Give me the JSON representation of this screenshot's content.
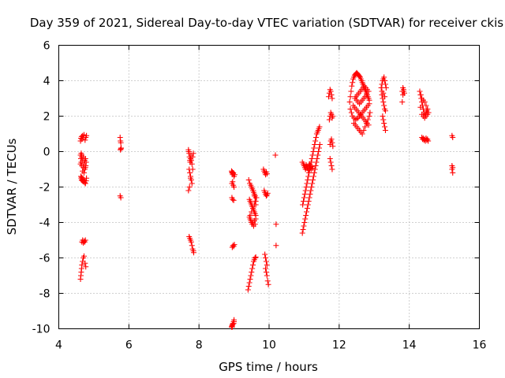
{
  "chart_data": {
    "type": "scatter",
    "title": "Day 359 of 2021, Sidereal Day-to-day VTEC variation (SDTVAR) for receiver ckis",
    "xlabel": "GPS time / hours",
    "ylabel": "SDTVAR / TECUs",
    "xlim": [
      4,
      16
    ],
    "ylim": [
      -10,
      6
    ],
    "xticks": [
      4,
      6,
      8,
      10,
      12,
      14,
      16
    ],
    "yticks": [
      -10,
      -8,
      -6,
      -4,
      -2,
      0,
      2,
      4,
      6
    ],
    "xtick_labels": [
      "4",
      "6",
      "8",
      "10",
      "12",
      "14",
      "16"
    ],
    "ytick_labels": [
      "-10",
      "-8",
      "-6",
      "-4",
      "-2",
      "0",
      "2",
      "4",
      "6"
    ],
    "grid": true,
    "marker": "+",
    "color": "#ff0000",
    "series": [
      {
        "name": "SDTVAR",
        "x": [
          4.62,
          4.63,
          4.65,
          4.66,
          4.68,
          4.7,
          4.72,
          4.75,
          4.77,
          4.79,
          4.62,
          4.63,
          4.64,
          4.65,
          4.66,
          4.68,
          4.7,
          4.72,
          4.74,
          4.76,
          4.78,
          4.64,
          4.66,
          4.7,
          4.74,
          4.77,
          4.62,
          4.68,
          4.72,
          4.76,
          4.63,
          4.64,
          4.65,
          4.66,
          4.67,
          4.68,
          4.7,
          4.72,
          4.74,
          4.76,
          4.78,
          4.79,
          4.66,
          4.68,
          4.7,
          4.72,
          4.74,
          4.76,
          4.62,
          4.63,
          4.64,
          4.65,
          4.66,
          4.68,
          4.7,
          4.72,
          4.75,
          4.77,
          5.75,
          5.76,
          5.77,
          5.78,
          5.76,
          5.77,
          5.75,
          5.77,
          7.7,
          7.71,
          7.72,
          7.73,
          7.74,
          7.75,
          7.76,
          7.77,
          7.78,
          7.8,
          7.82,
          7.84,
          7.72,
          7.74,
          7.76,
          7.78,
          7.8,
          7.82,
          7.7,
          7.73,
          7.76,
          7.72,
          7.74,
          7.76,
          7.78,
          7.8,
          7.82,
          7.84,
          7.85,
          8.93,
          8.94,
          8.95,
          8.96,
          8.97,
          8.98,
          9.0,
          9.02,
          8.94,
          8.96,
          8.98,
          9.0,
          8.94,
          8.96,
          8.99,
          8.95,
          8.97,
          8.99,
          9.01,
          8.93,
          8.95,
          8.97,
          8.99,
          9.0,
          8.94,
          8.96,
          9.0,
          8.95,
          8.99,
          9.42,
          9.45,
          9.48,
          9.5,
          9.52,
          9.54,
          9.56,
          9.58,
          9.6,
          9.62,
          9.44,
          9.46,
          9.48,
          9.5,
          9.52,
          9.54,
          9.56,
          9.58,
          9.6,
          9.62,
          9.44,
          9.46,
          9.48,
          9.5,
          9.52,
          9.54,
          9.56,
          9.58,
          9.6,
          9.62,
          9.46,
          9.5,
          9.54,
          9.58,
          9.62,
          9.64,
          9.4,
          9.42,
          9.44,
          9.46,
          9.48,
          9.5,
          9.52,
          9.54,
          9.56,
          9.58,
          9.6,
          9.62,
          9.55,
          9.58,
          9.6,
          9.62,
          9.84,
          9.86,
          9.88,
          9.9,
          9.92,
          9.94,
          9.86,
          9.88,
          9.9,
          9.92,
          9.94,
          9.96,
          9.88,
          9.9,
          9.92,
          9.94,
          9.9,
          9.92,
          9.94,
          9.96,
          9.98,
          10.18,
          10.2,
          10.2,
          10.95,
          10.98,
          11.0,
          11.02,
          11.04,
          11.06,
          11.08,
          11.1,
          11.12,
          11.14,
          11.16,
          11.18,
          11.2,
          11.22,
          11.24,
          10.95,
          10.97,
          10.99,
          11.01,
          11.03,
          11.05,
          11.07,
          11.09,
          11.11,
          11.13,
          11.15,
          11.17,
          11.19,
          11.21,
          11.23,
          11.25,
          11.27,
          11.29,
          11.31,
          11.33,
          11.35,
          11.37,
          11.39,
          11.41,
          11.43,
          11.45,
          10.96,
          10.98,
          11.0,
          11.02,
          11.04,
          11.06,
          11.08,
          11.1,
          11.12,
          11.14,
          11.16,
          11.18,
          11.2,
          11.22,
          11.24,
          11.26,
          11.28,
          11.3,
          11.32,
          11.34,
          11.36,
          11.38,
          11.4,
          11.42,
          11.44,
          11.7,
          11.72,
          11.74,
          11.76,
          11.78,
          11.8,
          11.72,
          11.74,
          11.76,
          11.78,
          11.8,
          11.82,
          11.74,
          11.76,
          11.78,
          11.8,
          11.82,
          11.74,
          11.76,
          11.78,
          11.8,
          12.3,
          12.32,
          12.34,
          12.36,
          12.38,
          12.4,
          12.42,
          12.44,
          12.46,
          12.48,
          12.5,
          12.52,
          12.54,
          12.56,
          12.58,
          12.6,
          12.62,
          12.64,
          12.66,
          12.68,
          12.7,
          12.72,
          12.74,
          12.76,
          12.78,
          12.8,
          12.82,
          12.84,
          12.86,
          12.32,
          12.35,
          12.38,
          12.42,
          12.46,
          12.5,
          12.54,
          12.58,
          12.62,
          12.66,
          12.7,
          12.74,
          12.78,
          12.82,
          12.86,
          12.4,
          12.44,
          12.48,
          12.52,
          12.56,
          12.6,
          12.64,
          12.68,
          12.72,
          12.76,
          12.8,
          12.84,
          12.42,
          12.46,
          12.5,
          12.54,
          12.58,
          12.62,
          12.66,
          12.7,
          12.74,
          12.78,
          12.82,
          12.86,
          12.88,
          12.45,
          12.48,
          12.52,
          12.56,
          12.6,
          12.64,
          12.68,
          12.72,
          12.76,
          12.8,
          12.84,
          12.5,
          12.54,
          12.58,
          12.62,
          12.66,
          12.7,
          12.74,
          12.78,
          13.2,
          13.22,
          13.24,
          13.26,
          13.28,
          13.3,
          13.32,
          13.34,
          13.22,
          13.24,
          13.26,
          13.28,
          13.3,
          13.32,
          13.24,
          13.26,
          13.28,
          13.3,
          13.32,
          13.22,
          13.26,
          13.3,
          13.8,
          13.82,
          13.84,
          13.86,
          13.82,
          13.84,
          13.8,
          14.3,
          14.32,
          14.34,
          14.36,
          14.38,
          14.4,
          14.42,
          14.44,
          14.46,
          14.48,
          14.5,
          14.52,
          14.32,
          14.36,
          14.4,
          14.44,
          14.48,
          14.52,
          14.36,
          14.38,
          14.4,
          14.42,
          14.44,
          14.46,
          14.48,
          14.5,
          14.52,
          14.54,
          14.33,
          14.36,
          14.4,
          14.44,
          14.48,
          14.52,
          14.55,
          15.22,
          15.24,
          15.22,
          15.24,
          15.22,
          15.24
        ],
        "y": [
          0.6,
          0.75,
          0.85,
          0.7,
          0.9,
          0.8,
          0.95,
          0.65,
          0.8,
          0.9,
          -0.2,
          -0.4,
          -0.6,
          -0.3,
          -0.8,
          -0.5,
          -0.9,
          -0.7,
          -1.0,
          -0.4,
          -0.6,
          -0.1,
          -0.2,
          -0.3,
          -0.5,
          -0.8,
          -0.7,
          -1.1,
          -1.2,
          -0.9,
          -1.4,
          -1.5,
          -1.6,
          -1.45,
          -1.65,
          -1.55,
          -1.7,
          -1.6,
          -1.75,
          -1.8,
          -1.65,
          -1.5,
          -5.1,
          -5.0,
          -5.15,
          -5.05,
          -5.1,
          -5.0,
          -7.2,
          -7.0,
          -6.8,
          -6.6,
          -6.4,
          -6.2,
          -6.0,
          -5.9,
          -6.3,
          -6.5,
          0.8,
          0.6,
          0.5,
          0.2,
          0.1,
          0.15,
          -2.5,
          -2.6,
          0.1,
          0.0,
          -0.1,
          -0.3,
          -0.5,
          -0.6,
          -0.4,
          -0.2,
          -0.5,
          -0.7,
          -0.3,
          -0.1,
          -1.0,
          -1.2,
          -1.4,
          -1.6,
          -1.8,
          -1.0,
          -2.2,
          -2.0,
          -1.5,
          -4.8,
          -4.9,
          -5.0,
          -5.1,
          -5.3,
          -5.5,
          -5.6,
          -5.7,
          -1.1,
          -1.2,
          -1.15,
          -1.3,
          -1.25,
          -1.2,
          -1.4,
          -1.3,
          -1.8,
          -1.7,
          -1.9,
          -2.0,
          -2.6,
          -2.7,
          -2.75,
          -5.4,
          -5.3,
          -5.35,
          -5.25,
          -9.9,
          -9.8,
          -9.7,
          -9.6,
          -9.5,
          -9.85,
          -9.75,
          -9.6,
          -9.9,
          -9.7,
          -1.6,
          -1.8,
          -1.9,
          -2.0,
          -2.1,
          -2.2,
          -2.3,
          -2.4,
          -2.5,
          -2.6,
          -2.7,
          -2.8,
          -2.9,
          -3.0,
          -3.1,
          -3.2,
          -3.3,
          -3.4,
          -3.5,
          -3.6,
          -3.7,
          -3.8,
          -3.9,
          -4.0,
          -4.1,
          -4.0,
          -4.2,
          -3.9,
          -4.1,
          -3.8,
          -3.6,
          -3.4,
          -3.2,
          -3.0,
          -2.8,
          -2.6,
          -7.8,
          -7.6,
          -7.4,
          -7.2,
          -7.0,
          -6.8,
          -6.6,
          -6.4,
          -6.2,
          -6.1,
          -6.0,
          -5.95,
          -2.2,
          -2.5,
          -2.8,
          -3.0,
          -1.0,
          -1.1,
          -1.2,
          -1.3,
          -1.15,
          -1.25,
          -2.2,
          -2.3,
          -2.4,
          -2.5,
          -2.45,
          -2.35,
          -5.8,
          -6.0,
          -6.2,
          -6.4,
          -6.6,
          -6.8,
          -7.0,
          -7.3,
          -7.5,
          -0.2,
          -4.1,
          -5.3,
          -0.6,
          -0.7,
          -0.8,
          -0.9,
          -1.0,
          -0.75,
          -0.85,
          -0.95,
          -1.05,
          -0.8,
          -0.7,
          -0.9,
          -1.0,
          -0.85,
          -0.95,
          -4.6,
          -4.4,
          -4.2,
          -4.0,
          -3.8,
          -3.6,
          -3.4,
          -3.2,
          -3.0,
          -2.8,
          -2.6,
          -2.4,
          -2.2,
          -2.0,
          -1.8,
          -1.6,
          -1.4,
          -1.2,
          -1.0,
          -0.8,
          -0.6,
          -0.4,
          -0.2,
          0.0,
          0.2,
          0.4,
          -3.0,
          -2.8,
          -2.6,
          -2.4,
          -2.2,
          -2.0,
          -1.8,
          -1.6,
          -1.4,
          -1.2,
          -1.0,
          -0.8,
          -0.6,
          -0.4,
          -0.2,
          0.0,
          0.2,
          0.4,
          0.6,
          0.8,
          1.0,
          1.1,
          1.2,
          1.3,
          1.4,
          3.1,
          3.3,
          3.5,
          3.4,
          3.2,
          3.0,
          1.8,
          2.0,
          2.2,
          2.1,
          1.9,
          2.0,
          0.4,
          0.6,
          0.7,
          0.5,
          0.3,
          -0.4,
          -0.6,
          -0.8,
          -1.0,
          2.8,
          3.1,
          3.4,
          3.7,
          3.9,
          4.1,
          4.2,
          4.3,
          4.35,
          4.4,
          4.45,
          4.4,
          4.35,
          4.3,
          4.25,
          4.2,
          4.1,
          4.0,
          3.9,
          3.8,
          3.7,
          3.6,
          3.5,
          3.4,
          3.3,
          3.2,
          3.1,
          3.0,
          2.9,
          2.4,
          2.2,
          2.0,
          1.9,
          1.8,
          1.85,
          1.9,
          2.0,
          2.1,
          2.2,
          2.3,
          2.4,
          2.5,
          2.6,
          2.7,
          2.6,
          2.5,
          2.4,
          2.3,
          2.2,
          2.1,
          2.0,
          1.9,
          1.8,
          1.7,
          1.6,
          1.5,
          1.6,
          1.5,
          1.4,
          1.3,
          1.2,
          1.1,
          1.0,
          1.2,
          1.4,
          1.6,
          1.8,
          2.0,
          2.2,
          3.0,
          3.1,
          3.2,
          3.3,
          3.4,
          3.5,
          3.6,
          3.7,
          3.6,
          3.5,
          3.4,
          2.9,
          2.8,
          2.7,
          2.8,
          2.9,
          3.0,
          3.1,
          3.2,
          3.6,
          3.8,
          4.0,
          4.1,
          4.2,
          4.0,
          3.8,
          3.6,
          3.2,
          3.0,
          2.8,
          2.6,
          2.4,
          2.3,
          2.0,
          1.8,
          1.6,
          1.4,
          1.2,
          3.4,
          3.3,
          3.1,
          3.4,
          3.6,
          3.5,
          3.3,
          3.2,
          3.4,
          2.8,
          3.4,
          3.2,
          3.0,
          2.8,
          2.6,
          2.4,
          2.2,
          2.0,
          2.1,
          2.2,
          2.3,
          2.4,
          2.5,
          2.1,
          2.0,
          1.9,
          2.0,
          2.1,
          0.8,
          0.7,
          0.75,
          0.65,
          0.7,
          0.6,
          0.75,
          0.65,
          0.7,
          0.6,
          3.2,
          3.0,
          2.9,
          2.8,
          2.6,
          2.4,
          2.2,
          0.9,
          0.8,
          -0.8,
          -0.9,
          -1.0,
          -1.2
        ]
      }
    ]
  }
}
